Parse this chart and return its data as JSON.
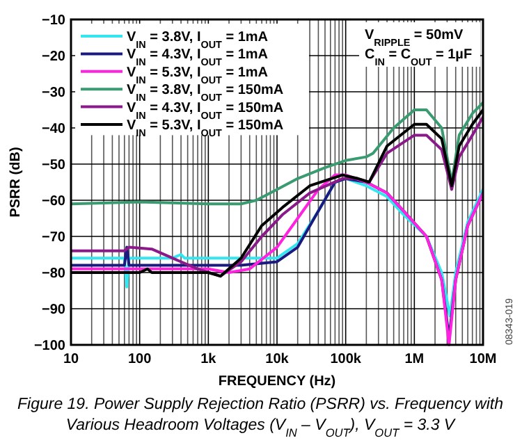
{
  "chart_data": {
    "type": "line",
    "title": "Figure 19. Power Supply Rejection Ratio (PSRR) vs. Frequency with Various Headroom Voltages (V$_{IN}$ – V$_{OUT}$), V$_{OUT}$ = 3.3 V",
    "xlabel": "FREQUENCY (Hz)",
    "ylabel": "PSRR (dB)",
    "annotations": [
      "V$_{RIPPLE}$ = 50mV",
      "C$_{IN}$ = C$_{OUT}$ = 1µF",
      "08343-019"
    ],
    "log": "x",
    "grid": true,
    "legend": "top left",
    "marker": "none",
    "line_style": "solid",
    "xlim": [
      10,
      10000000
    ],
    "xticks": [
      10,
      100,
      {
        "value": 1000,
        "label": "1k"
      },
      {
        "value": 10000,
        "label": "10k"
      },
      {
        "value": 100000,
        "label": "100k"
      },
      {
        "value": 1000000,
        "label": "1M"
      },
      {
        "value": 10000000,
        "label": "10M"
      }
    ],
    "ylim": [
      -100,
      -10
    ],
    "yticks": [
      -100,
      -90,
      -80,
      -70,
      -60,
      -50,
      -40,
      -30,
      -20,
      -10
    ],
    "series": [
      {
        "name": "V$_{IN}$ = 3.8V, I$_{OUT}$ = 1mA",
        "color": "#33e6f0",
        "x": [
          10,
          30,
          60,
          65,
          70,
          100,
          300,
          400,
          450,
          1000,
          3000,
          10000,
          20000,
          40000,
          70000,
          100000,
          200000,
          400000,
          700000,
          1500000,
          2500000,
          3300000,
          4000000,
          6000000,
          10000000
        ],
        "values": [
          -76,
          -76,
          -76,
          -84,
          -76,
          -76,
          -76,
          -75,
          -76,
          -76,
          -76,
          -76,
          -72,
          -63,
          -55,
          -54,
          -56,
          -59,
          -64,
          -70,
          -80,
          -92,
          -80,
          -66,
          -57
        ]
      },
      {
        "name": "V$_{IN}$ = 4.3V, I$_{OUT}$ = 1mA",
        "color": "#1a1a80",
        "x": [
          10,
          60,
          65,
          70,
          1000,
          3000,
          10000,
          20000,
          40000,
          70000,
          100000,
          200000,
          400000,
          700000,
          1500000,
          2500000,
          3200000,
          4000000,
          6000000,
          10000000
        ],
        "values": [
          -78,
          -78,
          -73,
          -78,
          -78,
          -78,
          -77,
          -73,
          -63,
          -55,
          -54,
          -55,
          -58,
          -63,
          -70,
          -82,
          -98,
          -82,
          -67,
          -58
        ]
      },
      {
        "name": "V$_{IN}$ = 5.3V, I$_{OUT}$ = 1mA",
        "color": "#ff22e0",
        "x": [
          10,
          1000,
          2000,
          4000,
          10000,
          20000,
          40000,
          70000,
          100000,
          200000,
          400000,
          700000,
          1500000,
          2500000,
          3200000,
          4000000,
          6000000,
          10000000
        ],
        "values": [
          -79,
          -79,
          -80,
          -79,
          -73,
          -65,
          -57,
          -53,
          -53,
          -55,
          -58,
          -63,
          -70,
          -82,
          -100,
          -82,
          -67,
          -58
        ]
      },
      {
        "name": "V$_{IN}$ = 3.8V, I$_{OUT}$ = 150mA",
        "color": "#3a9a70",
        "x": [
          10,
          100,
          1000,
          3000,
          5000,
          10000,
          20000,
          50000,
          100000,
          200000,
          250000,
          500000,
          1000000,
          1500000,
          2500000,
          3500000,
          4500000,
          7000000,
          10000000
        ],
        "values": [
          -61,
          -60.5,
          -61,
          -61,
          -60,
          -57,
          -54,
          -51,
          -49,
          -48,
          -47,
          -40,
          -35,
          -35,
          -40,
          -55,
          -42,
          -36,
          -33
        ]
      },
      {
        "name": "V$_{IN}$ = 4.3V, I$_{OUT}$ = 150mA",
        "color": "#8a1a8a",
        "x": [
          10,
          60,
          70,
          150,
          300,
          700,
          1500,
          3000,
          6000,
          12000,
          30000,
          90000,
          150000,
          220000,
          400000,
          1000000,
          1500000,
          2500000,
          3500000,
          4500000,
          7000000,
          10000000
        ],
        "values": [
          -74,
          -74,
          -73,
          -73.5,
          -76,
          -79,
          -81,
          -77,
          -70,
          -64,
          -58,
          -54,
          -54,
          -55,
          -47,
          -42,
          -42,
          -46,
          -57,
          -48,
          -42,
          -37
        ]
      },
      {
        "name": "V$_{IN}$ = 5.3V, I$_{OUT}$ = 150mA",
        "color": "#000000",
        "x": [
          10,
          100,
          130,
          150,
          1000,
          1500,
          3000,
          6000,
          12000,
          30000,
          90000,
          150000,
          220000,
          400000,
          1000000,
          1500000,
          2500000,
          3500000,
          4500000,
          7000000,
          10000000
        ],
        "values": [
          -80,
          -80,
          -79,
          -80,
          -80,
          -81,
          -76,
          -67,
          -62,
          -56,
          -53,
          -54,
          -55,
          -45,
          -39,
          -39,
          -43,
          -56,
          -45,
          -39,
          -35
        ]
      }
    ]
  }
}
